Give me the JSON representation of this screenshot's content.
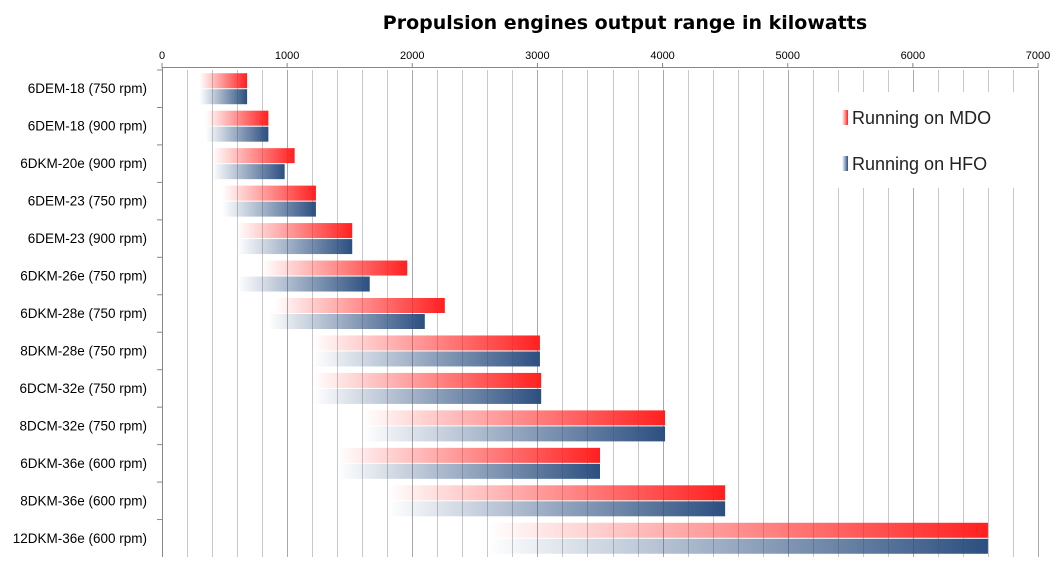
{
  "chart_data": {
    "type": "bar",
    "orientation": "horizontal",
    "title": "Propulsion engines output range in kilowatts",
    "xlabel": "",
    "ylabel": "",
    "xlim": [
      0,
      7000
    ],
    "xticks": [
      0,
      1000,
      2000,
      3000,
      4000,
      5000,
      6000,
      7000
    ],
    "minor_gridlines": true,
    "legend_position": "right",
    "colors": {
      "mdo": "#ff2020",
      "hfo": "#2c4f80"
    },
    "categories": [
      "6DEM-18 (750 rpm)",
      "6DEM-18 (900 rpm)",
      "6DKM-20e (900 rpm)",
      "6DEM-23 (750 rpm)",
      "6DEM-23 (900 rpm)",
      "6DKM-26e (750 rpm)",
      "6DKM-28e (750 rpm)",
      "8DKM-28e (750 rpm)",
      "6DCM-32e (750 rpm)",
      "8DCM-32e (750 rpm)",
      "6DKM-36e (600 rpm)",
      "8DKM-36e (600 rpm)",
      "12DKM-36e (600 rpm)"
    ],
    "series": [
      {
        "name": "Running on MDO",
        "ranges": [
          [
            300,
            680
          ],
          [
            350,
            850
          ],
          [
            400,
            1060
          ],
          [
            480,
            1230
          ],
          [
            600,
            1520
          ],
          [
            800,
            1960
          ],
          [
            900,
            2260
          ],
          [
            1200,
            3020
          ],
          [
            1200,
            3030
          ],
          [
            1600,
            4020
          ],
          [
            1400,
            3500
          ],
          [
            1800,
            4500
          ],
          [
            2600,
            6600
          ]
        ]
      },
      {
        "name": "Running on HFO",
        "ranges": [
          [
            300,
            680
          ],
          [
            350,
            850
          ],
          [
            400,
            980
          ],
          [
            480,
            1230
          ],
          [
            600,
            1520
          ],
          [
            600,
            1660
          ],
          [
            850,
            2100
          ],
          [
            1200,
            3020
          ],
          [
            1200,
            3030
          ],
          [
            1600,
            4020
          ],
          [
            1400,
            3500
          ],
          [
            1800,
            4500
          ],
          [
            2600,
            6600
          ]
        ]
      }
    ]
  }
}
